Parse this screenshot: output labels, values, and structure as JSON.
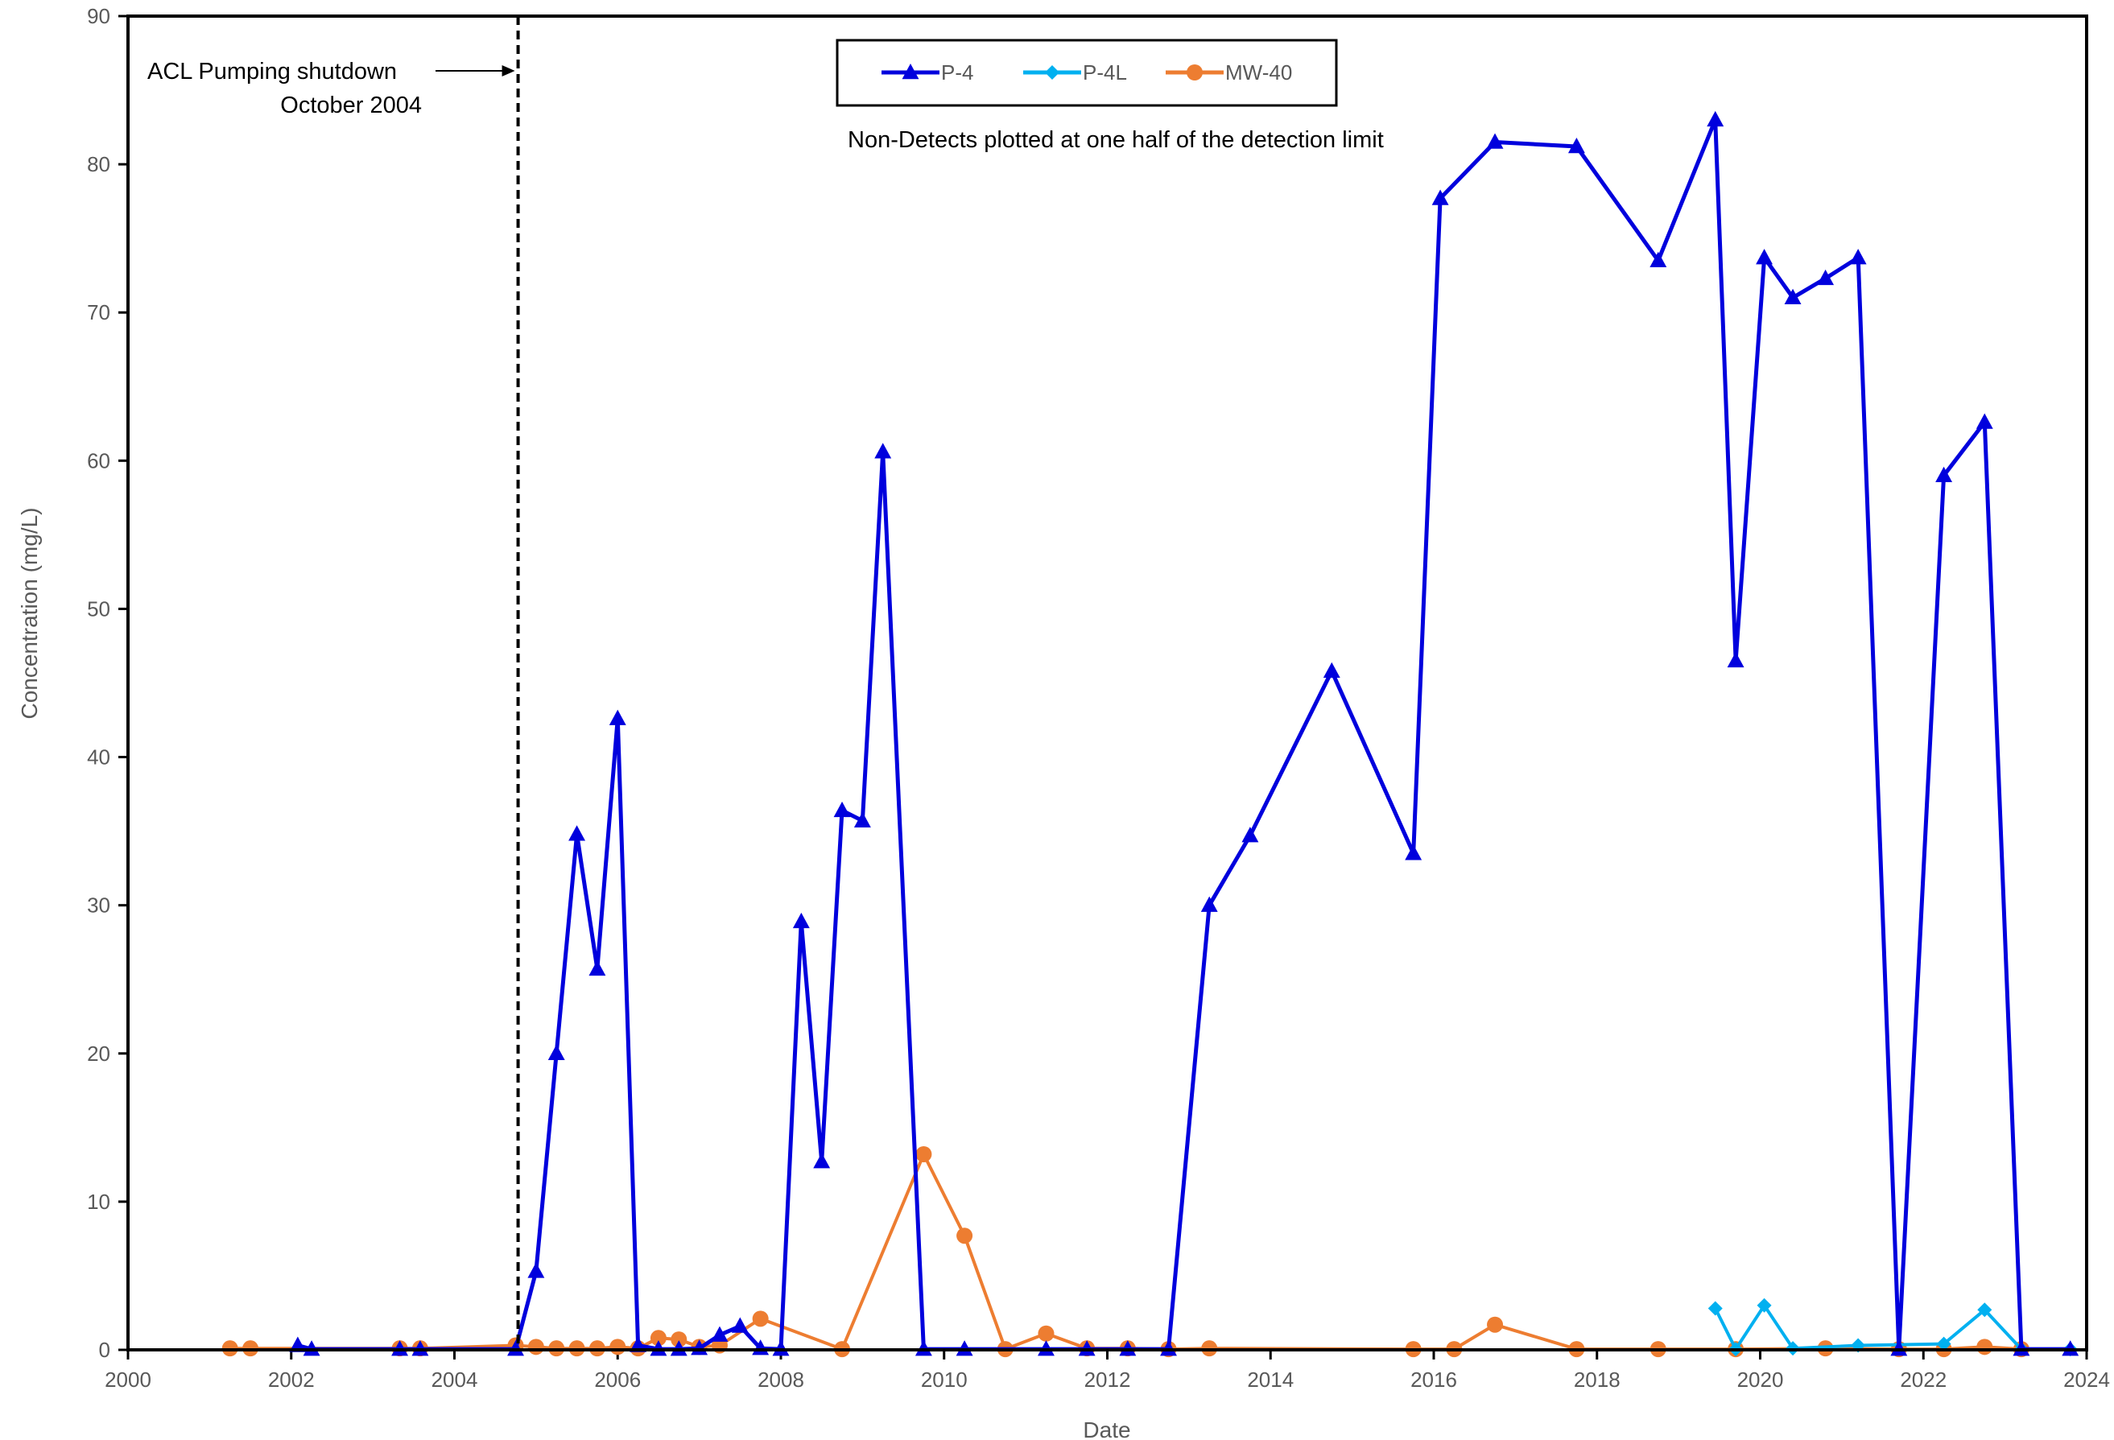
{
  "chart_data": {
    "type": "line",
    "xlabel": "Date",
    "ylabel": "Concentration (mg/L)",
    "xlim": [
      2000,
      2024
    ],
    "ylim": [
      0,
      90
    ],
    "x_ticks": [
      "2000",
      "2002",
      "2004",
      "2006",
      "2008",
      "2010",
      "2012",
      "2014",
      "2016",
      "2018",
      "2020",
      "2022",
      "2024"
    ],
    "y_ticks": [
      "0",
      "10",
      "20",
      "30",
      "40",
      "50",
      "60",
      "70",
      "80",
      "90"
    ],
    "grid": false,
    "legend_position": "top-center",
    "annotations": {
      "shutdown_line1": "ACL Pumping shutdown",
      "shutdown_line2": "October 2004",
      "shutdown_year": 2004.78,
      "nondetect_note": "Non-Detects plotted at one half of the detection limit"
    },
    "series": [
      {
        "name": "P-4",
        "color": "#0000DD",
        "marker": "triangle",
        "points": [
          [
            2002.08,
            0.3
          ],
          [
            2002.25,
            0.05
          ],
          [
            2003.33,
            0.05
          ],
          [
            2003.58,
            0.05
          ],
          [
            2004.75,
            0.05
          ],
          [
            2005.0,
            5.3
          ],
          [
            2005.25,
            20.0
          ],
          [
            2005.5,
            34.8
          ],
          [
            2005.75,
            25.7
          ],
          [
            2006.0,
            42.6
          ],
          [
            2006.25,
            0.3
          ],
          [
            2006.5,
            0.05
          ],
          [
            2006.75,
            0.05
          ],
          [
            2007.0,
            0.1
          ],
          [
            2007.25,
            1.0
          ],
          [
            2007.5,
            1.6
          ],
          [
            2007.75,
            0.1
          ],
          [
            2008.0,
            0.05
          ],
          [
            2008.25,
            28.9
          ],
          [
            2008.5,
            12.7
          ],
          [
            2008.75,
            36.4
          ],
          [
            2009.0,
            35.7
          ],
          [
            2009.25,
            60.6
          ],
          [
            2009.75,
            0.05
          ],
          [
            2010.25,
            0.05
          ],
          [
            2011.25,
            0.05
          ],
          [
            2011.75,
            0.05
          ],
          [
            2012.25,
            0.05
          ],
          [
            2012.75,
            0.05
          ],
          [
            2013.25,
            30.0
          ],
          [
            2013.75,
            34.7
          ],
          [
            2014.75,
            45.8
          ],
          [
            2015.75,
            33.5
          ],
          [
            2016.08,
            77.7
          ],
          [
            2016.75,
            81.5
          ],
          [
            2017.75,
            81.2
          ],
          [
            2018.75,
            73.5
          ],
          [
            2019.45,
            83.0
          ],
          [
            2019.7,
            46.5
          ],
          [
            2020.05,
            73.7
          ],
          [
            2020.4,
            71.0
          ],
          [
            2020.8,
            72.3
          ],
          [
            2021.2,
            73.7
          ],
          [
            2021.7,
            0.05
          ],
          [
            2022.25,
            59.0
          ],
          [
            2022.75,
            62.6
          ],
          [
            2023.2,
            0.05
          ],
          [
            2023.8,
            0.05
          ]
        ]
      },
      {
        "name": "P-4L",
        "color": "#00B0F0",
        "marker": "diamond",
        "points": [
          [
            2019.45,
            2.8
          ],
          [
            2019.7,
            0.05
          ],
          [
            2020.05,
            3.0
          ],
          [
            2020.4,
            0.1
          ],
          [
            2021.2,
            0.3
          ],
          [
            2022.25,
            0.4
          ],
          [
            2022.75,
            2.7
          ],
          [
            2023.2,
            0.05
          ],
          [
            2023.8,
            0.05
          ]
        ]
      },
      {
        "name": "MW-40",
        "color": "#ED7D31",
        "marker": "circle",
        "points": [
          [
            2001.25,
            0.1
          ],
          [
            2001.5,
            0.1
          ],
          [
            2003.33,
            0.1
          ],
          [
            2003.58,
            0.1
          ],
          [
            2004.75,
            0.3
          ],
          [
            2005.0,
            0.2
          ],
          [
            2005.25,
            0.1
          ],
          [
            2005.5,
            0.1
          ],
          [
            2005.75,
            0.1
          ],
          [
            2006.0,
            0.2
          ],
          [
            2006.25,
            0.1
          ],
          [
            2006.5,
            0.8
          ],
          [
            2006.75,
            0.7
          ],
          [
            2007.0,
            0.2
          ],
          [
            2007.25,
            0.3
          ],
          [
            2007.75,
            2.1
          ],
          [
            2008.75,
            0.05
          ],
          [
            2009.75,
            13.2
          ],
          [
            2010.25,
            7.7
          ],
          [
            2010.75,
            0.05
          ],
          [
            2011.25,
            1.1
          ],
          [
            2011.75,
            0.1
          ],
          [
            2012.25,
            0.1
          ],
          [
            2012.75,
            0.05
          ],
          [
            2013.25,
            0.1
          ],
          [
            2015.75,
            0.05
          ],
          [
            2016.25,
            0.05
          ],
          [
            2016.75,
            1.7
          ],
          [
            2017.75,
            0.05
          ],
          [
            2018.75,
            0.05
          ],
          [
            2019.7,
            0.05
          ],
          [
            2020.8,
            0.1
          ],
          [
            2021.7,
            0.05
          ],
          [
            2022.25,
            0.05
          ],
          [
            2022.75,
            0.2
          ],
          [
            2023.2,
            0.05
          ]
        ]
      }
    ]
  }
}
